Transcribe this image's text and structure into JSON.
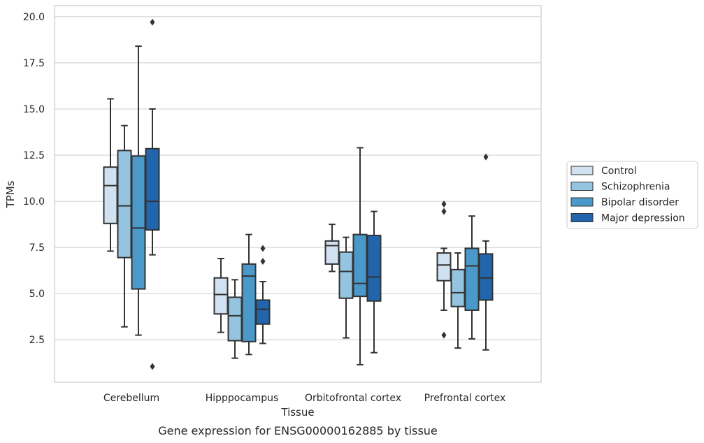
{
  "chart_data": {
    "type": "boxplot",
    "xlabel": "Tissue",
    "ylabel": "TPMs",
    "caption": "Gene expression for ENSG00000162885 by tissue",
    "categories": [
      "Cerebellum",
      "Hipppocampus",
      "Orbitofrontal cortex",
      "Prefrontal cortex"
    ],
    "ylim": [
      0.2,
      20.6
    ],
    "yticks": [
      2.5,
      5.0,
      7.5,
      10.0,
      12.5,
      15.0,
      17.5,
      20.0
    ],
    "ytick_labels": [
      "2.5",
      "5.0",
      "7.5",
      "10.0",
      "12.5",
      "15.0",
      "17.5",
      "20.0"
    ],
    "grid": "horizontal",
    "legend_position": "right",
    "series": [
      {
        "name": "Control",
        "color": "#d0e1f2",
        "boxes": [
          {
            "whislo": 7.3,
            "q1": 8.8,
            "med": 10.85,
            "q3": 11.85,
            "whishi": 15.55,
            "fliers": []
          },
          {
            "whislo": 2.9,
            "q1": 3.9,
            "med": 4.95,
            "q3": 5.85,
            "whishi": 6.9,
            "fliers": []
          },
          {
            "whislo": 6.2,
            "q1": 6.6,
            "med": 7.6,
            "q3": 7.85,
            "whishi": 8.75,
            "fliers": []
          },
          {
            "whislo": 4.1,
            "q1": 5.7,
            "med": 6.55,
            "q3": 7.2,
            "whishi": 7.45,
            "fliers": [
              2.75,
              9.45,
              9.85
            ]
          }
        ]
      },
      {
        "name": "Schizophrenia",
        "color": "#94c4df",
        "boxes": [
          {
            "whislo": 3.2,
            "q1": 6.95,
            "med": 9.75,
            "q3": 12.75,
            "whishi": 14.1,
            "fliers": []
          },
          {
            "whislo": 1.5,
            "q1": 2.45,
            "med": 3.8,
            "q3": 4.8,
            "whishi": 5.75,
            "fliers": []
          },
          {
            "whislo": 2.6,
            "q1": 4.75,
            "med": 6.2,
            "q3": 7.25,
            "whishi": 8.05,
            "fliers": []
          },
          {
            "whislo": 2.05,
            "q1": 4.3,
            "med": 5.05,
            "q3": 6.3,
            "whishi": 7.2,
            "fliers": []
          }
        ]
      },
      {
        "name": "Bipolar disorder",
        "color": "#4b98ca",
        "boxes": [
          {
            "whislo": 2.75,
            "q1": 5.25,
            "med": 8.55,
            "q3": 12.45,
            "whishi": 18.4,
            "fliers": []
          },
          {
            "whislo": 1.7,
            "q1": 2.4,
            "med": 5.95,
            "q3": 6.6,
            "whishi": 8.2,
            "fliers": []
          },
          {
            "whislo": 1.15,
            "q1": 4.85,
            "med": 5.55,
            "q3": 8.2,
            "whishi": 12.9,
            "fliers": []
          },
          {
            "whislo": 2.55,
            "q1": 4.1,
            "med": 6.5,
            "q3": 7.45,
            "whishi": 9.2,
            "fliers": []
          }
        ]
      },
      {
        "name": "Major depression",
        "color": "#2166ac",
        "boxes": [
          {
            "whislo": 7.1,
            "q1": 8.45,
            "med": 10.0,
            "q3": 12.85,
            "whishi": 15.0,
            "fliers": [
              1.05,
              19.7
            ]
          },
          {
            "whislo": 2.3,
            "q1": 3.35,
            "med": 4.15,
            "q3": 4.65,
            "whishi": 5.65,
            "fliers": [
              6.75,
              7.45
            ]
          },
          {
            "whislo": 1.8,
            "q1": 4.6,
            "med": 5.9,
            "q3": 8.15,
            "whishi": 9.45,
            "fliers": []
          },
          {
            "whislo": 1.95,
            "q1": 4.65,
            "med": 5.85,
            "q3": 7.15,
            "whishi": 7.85,
            "fliers": [
              12.4
            ]
          }
        ]
      }
    ]
  }
}
